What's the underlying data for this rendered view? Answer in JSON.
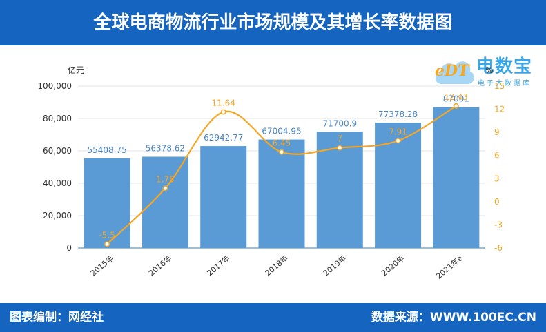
{
  "header": {
    "title": "全球电商物流行业市场规模及其增长率数据图"
  },
  "footer": {
    "left": "图表编制：网经社",
    "right": "数据来源：WWW.100EC.CN"
  },
  "logo": {
    "brand": "电数宝",
    "sub": "电子大数据库",
    "mark": "eDT"
  },
  "colors": {
    "bar": "#5b9bd5",
    "line": "#f5a623",
    "banner": "#1565c0"
  },
  "chart_data": {
    "type": "bar",
    "categories": [
      "2015年",
      "2016年",
      "2017年",
      "2018年",
      "2019年",
      "2020年",
      "2021年e"
    ],
    "series": [
      {
        "values": [
          55408.75,
          56378.62,
          62942.77,
          67004.95,
          71700.9,
          77378.28,
          87001
        ],
        "axis": "left",
        "kind": "bar"
      },
      {
        "values": [
          -5.5,
          1.75,
          11.64,
          6.45,
          7,
          7.91,
          12.43
        ],
        "axis": "right",
        "kind": "line"
      }
    ],
    "bar_labels": [
      "55408.75",
      "56378.62",
      "62942.77",
      "67004.95",
      "71700.9",
      "77378.28",
      "87001"
    ],
    "line_labels": [
      "-5.5",
      "1.75",
      "11.64",
      "6.45",
      "7",
      "7.91",
      "12.43"
    ],
    "ylabel": "亿元",
    "ylim": [
      0,
      100000
    ],
    "yticks": [
      0,
      20000,
      40000,
      60000,
      80000,
      100000
    ],
    "ytick_labels": [
      "0",
      "20,000",
      "40,000",
      "60,000",
      "80,000",
      "100,000"
    ],
    "y2lim": [
      -6,
      15
    ],
    "y2ticks": [
      -6,
      -3,
      0,
      3,
      6,
      9,
      12,
      15
    ],
    "y2tick_labels": [
      "-6",
      "-3",
      "0",
      "3",
      "6",
      "9",
      "12",
      "15"
    ],
    "y2label": "%",
    "grid": true
  }
}
